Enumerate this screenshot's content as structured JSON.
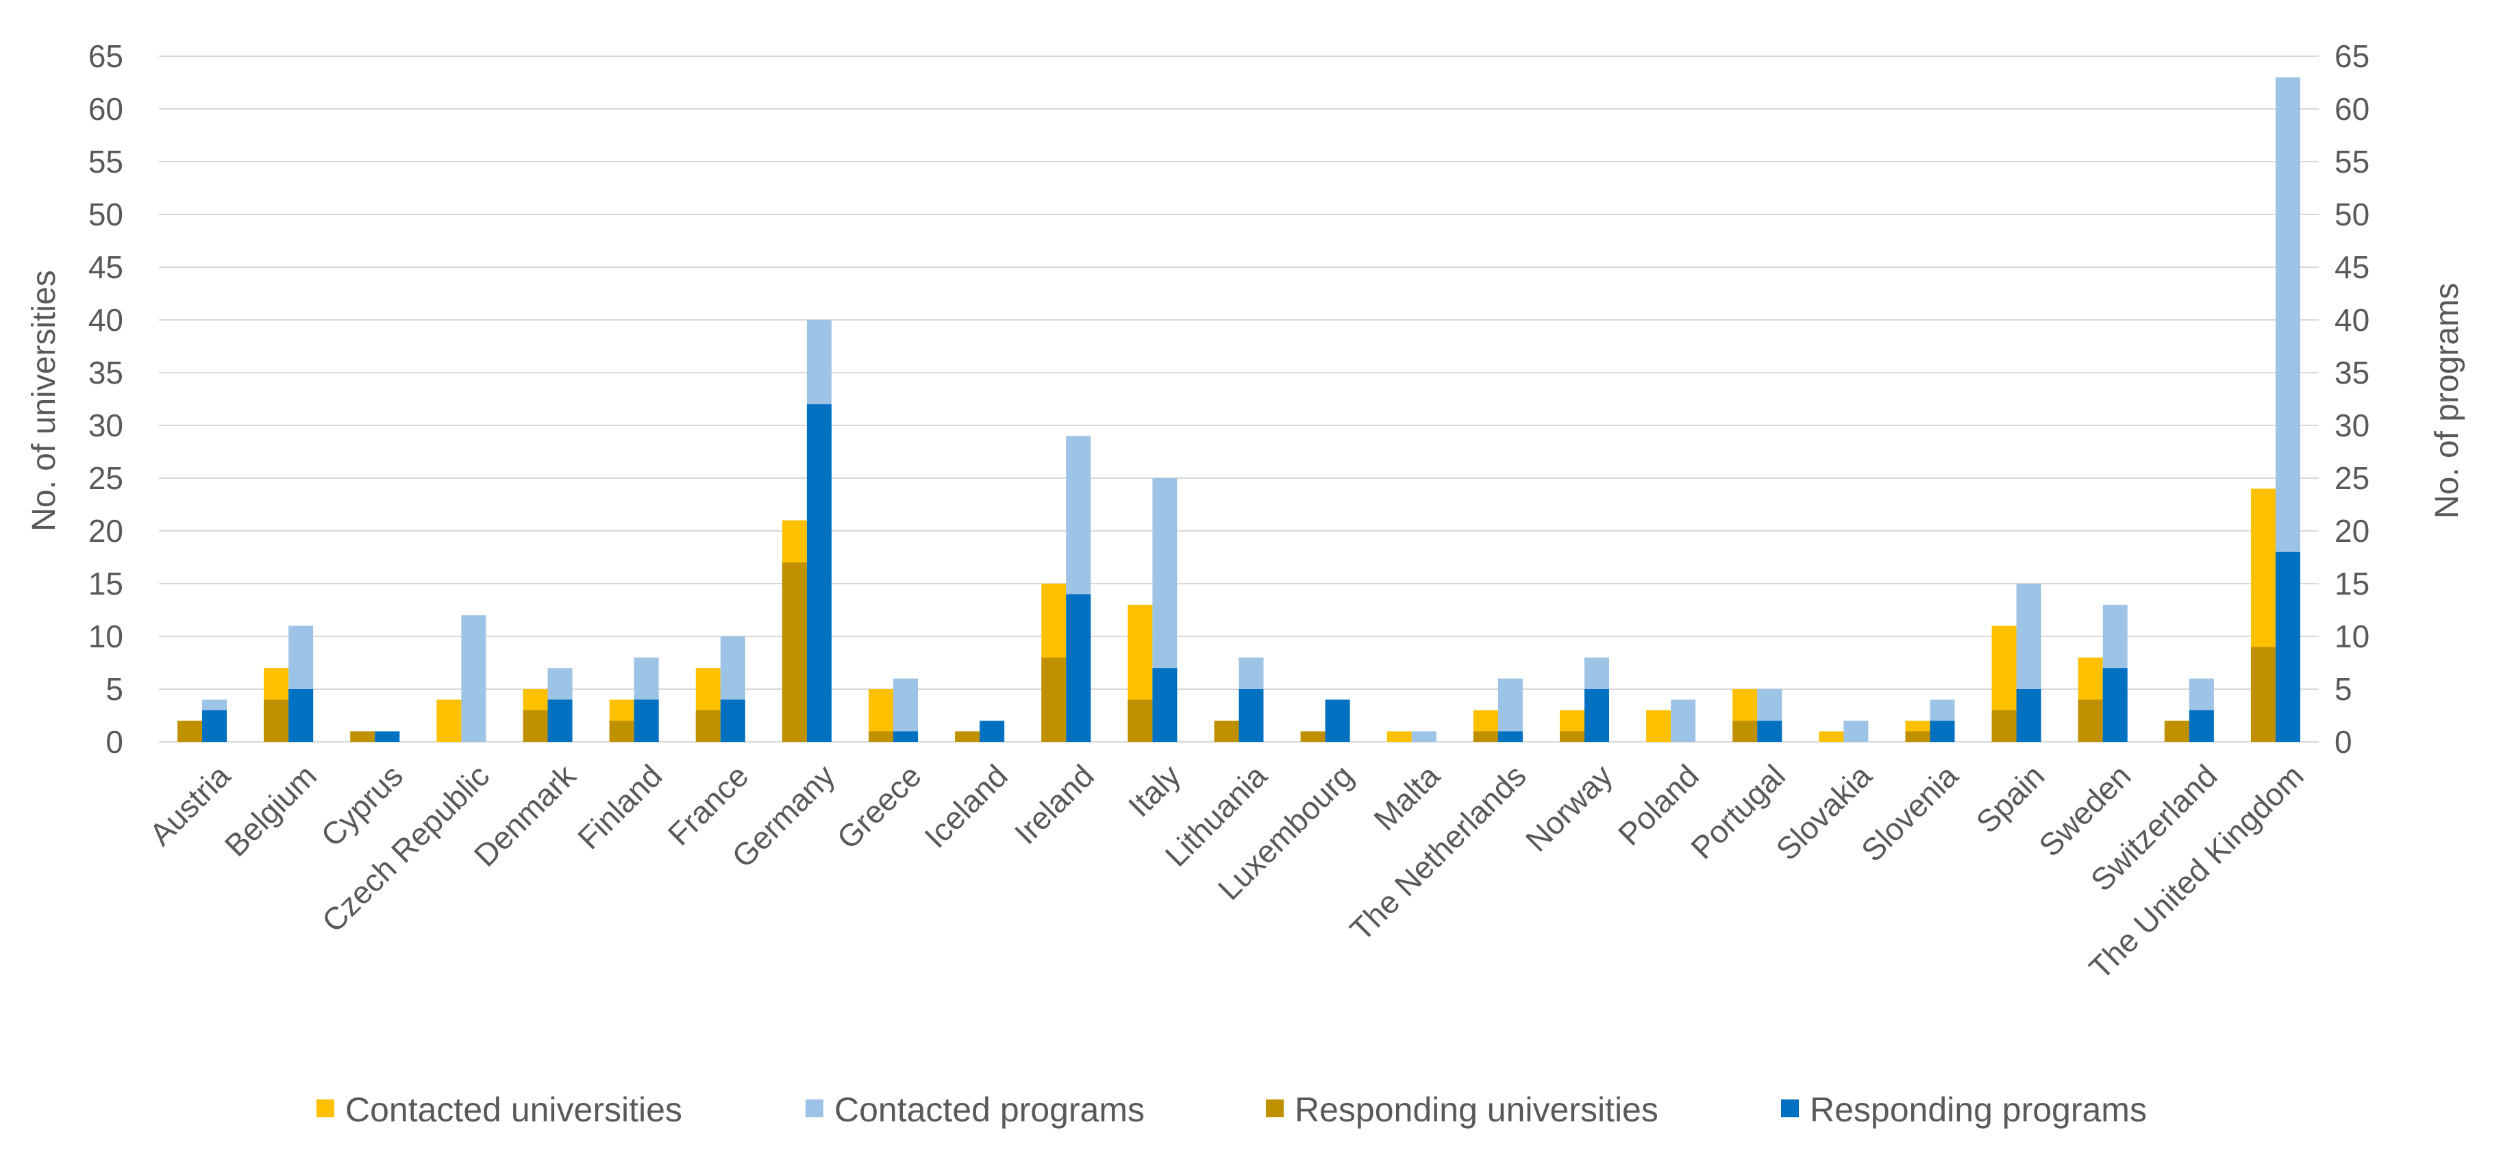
{
  "chart_data": {
    "type": "bar",
    "title": "",
    "ylabel_left": "No. of universities",
    "ylabel_right": "No. of programs",
    "ylim": [
      0,
      65
    ],
    "yticks": [
      0,
      5,
      10,
      15,
      20,
      25,
      30,
      35,
      40,
      45,
      50,
      55,
      60,
      65
    ],
    "legend_position": "bottom",
    "grid": true,
    "categories": [
      "Austria",
      "Belgium",
      "Cyprus",
      "Czech Republic",
      "Denmark",
      "Finland",
      "France",
      "Germany",
      "Greece",
      "Iceland",
      "Ireland",
      "Italy",
      "Lithuania",
      "Luxembourg",
      "Malta",
      "The Netherlands",
      "Norway",
      "Poland",
      "Portugal",
      "Slovakia",
      "Slovenia",
      "Spain",
      "Sweden",
      "Switzerland",
      "The United Kingdom"
    ],
    "series": [
      {
        "name": "Contacted universities",
        "color": "#ffc000",
        "axis": "left",
        "values": [
          2,
          7,
          1,
          4,
          5,
          4,
          7,
          21,
          5,
          1,
          15,
          13,
          2,
          1,
          1,
          3,
          3,
          3,
          5,
          1,
          2,
          11,
          8,
          2,
          24
        ]
      },
      {
        "name": "Contacted programs",
        "color": "#9dc3e6",
        "axis": "right",
        "values": [
          4,
          11,
          1,
          12,
          7,
          8,
          10,
          40,
          6,
          2,
          29,
          25,
          8,
          4,
          1,
          6,
          8,
          4,
          5,
          2,
          4,
          15,
          13,
          6,
          63
        ]
      },
      {
        "name": "Responding universities",
        "color": "#bf9000",
        "axis": "left",
        "values": [
          2,
          4,
          1,
          0,
          3,
          2,
          3,
          17,
          1,
          1,
          8,
          4,
          2,
          1,
          0,
          1,
          1,
          0,
          2,
          0,
          1,
          3,
          4,
          2,
          9
        ]
      },
      {
        "name": "Responding programs",
        "color": "#0070c0",
        "axis": "right",
        "values": [
          3,
          5,
          1,
          0,
          4,
          4,
          4,
          32,
          1,
          2,
          14,
          7,
          5,
          4,
          0,
          1,
          5,
          0,
          2,
          0,
          2,
          5,
          7,
          3,
          18
        ]
      }
    ]
  }
}
